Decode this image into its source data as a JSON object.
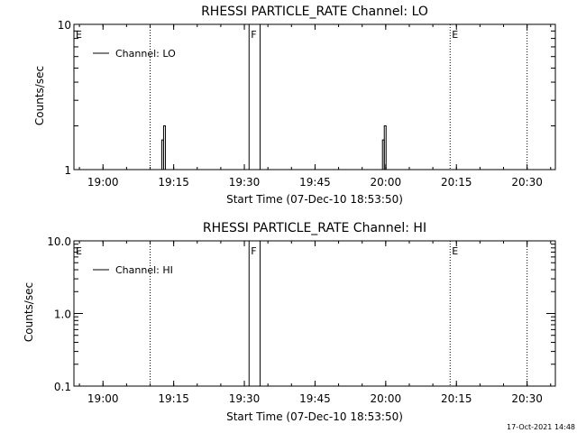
{
  "chart_data": [
    {
      "type": "line",
      "title": "RHESSI PARTICLE_RATE Channel: LO",
      "xlabel": "Start Time (07-Dec-10 18:53:50)",
      "ylabel": "Counts/sec",
      "yscale": "log",
      "ylim": [
        1,
        10
      ],
      "y_tick_labels": [
        "1",
        "10"
      ],
      "y_tick_values": [
        1,
        10
      ],
      "x_tick_labels": [
        "19:00",
        "19:15",
        "19:30",
        "19:45",
        "20:00",
        "20:15",
        "20:30"
      ],
      "legend": {
        "entries": [
          "Channel: LO"
        ],
        "placement": "top-left"
      },
      "markers": [
        {
          "label": "E",
          "time": "18:53:50",
          "style": "none"
        },
        {
          "label": "",
          "time": "19:10:00",
          "style": "dotted"
        },
        {
          "label": "F",
          "time": "19:31:00",
          "style": "solid"
        },
        {
          "label": "",
          "time": "19:33:20",
          "style": "solid"
        },
        {
          "label": "E",
          "time": "20:13:40",
          "style": "dotted"
        },
        {
          "label": "",
          "time": "20:30:00",
          "style": "dotted"
        }
      ],
      "series": [
        {
          "name": "Channel: LO",
          "spikes": [
            {
              "time": "19:12:40",
              "peak": 2.0
            },
            {
              "time": "19:12:40",
              "peak": 1.6
            },
            {
              "time": "19:59:30",
              "peak": 2.0
            },
            {
              "time": "19:59:30",
              "peak": 1.6
            }
          ]
        }
      ]
    },
    {
      "type": "line",
      "title": "RHESSI PARTICLE_RATE Channel: HI",
      "xlabel": "Start Time (07-Dec-10 18:53:50)",
      "ylabel": "Counts/sec",
      "yscale": "log",
      "ylim": [
        0.1,
        10
      ],
      "y_tick_labels": [
        "0.1",
        "1.0",
        "10.0"
      ],
      "y_tick_values": [
        0.1,
        1,
        10
      ],
      "x_tick_labels": [
        "19:00",
        "19:15",
        "19:30",
        "19:45",
        "20:00",
        "20:15",
        "20:30"
      ],
      "legend": {
        "entries": [
          "Channel: HI"
        ],
        "placement": "top-left"
      },
      "markers": [
        {
          "label": "E",
          "time": "18:53:50",
          "style": "none"
        },
        {
          "label": "",
          "time": "19:10:00",
          "style": "dotted"
        },
        {
          "label": "F",
          "time": "19:31:00",
          "style": "solid"
        },
        {
          "label": "",
          "time": "19:33:20",
          "style": "solid"
        },
        {
          "label": "E",
          "time": "20:13:40",
          "style": "dotted"
        },
        {
          "label": "",
          "time": "20:30:00",
          "style": "dotted"
        }
      ],
      "series": [
        {
          "name": "Channel: HI",
          "spikes": []
        }
      ]
    }
  ],
  "timestamp": "17-Oct-2021 14:48"
}
